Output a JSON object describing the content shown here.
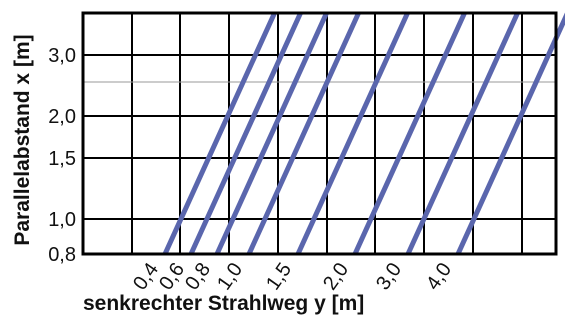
{
  "chart_data": {
    "type": "line",
    "title": "",
    "ylabel_main": "Parallelabstand",
    "ylabel_var": "x",
    "ylabel_unit": "[m]",
    "xlabel_main": "senkrechter Strahlweg",
    "xlabel_var": "y",
    "xlabel_unit": "[m]",
    "ylim": [
      0.8,
      3.7
    ],
    "y_tick_labels": [
      "0,8",
      "1,0",
      "1,5",
      "2,0",
      "3,0"
    ],
    "y_ticks": [
      0.8,
      1.0,
      1.5,
      2.0,
      3.0
    ],
    "y_gridlines_dark": [
      1.0,
      1.5,
      2.0,
      3.0
    ],
    "y_gridlines_light": [
      2.5
    ],
    "x_category_labels": [
      "0,4",
      "0,6",
      "0,8",
      "1,0",
      "1,5",
      "2,0",
      "3,0",
      "4,0"
    ],
    "grid": true,
    "series": [
      {
        "label_index": 0,
        "y_at_bottom": 0.4
      },
      {
        "label_index": 1,
        "y_at_bottom": 0.6
      },
      {
        "label_index": 2,
        "y_at_bottom": 0.8
      },
      {
        "label_index": 3,
        "y_at_bottom": 1.0
      },
      {
        "label_index": 4,
        "y_at_bottom": 1.5
      },
      {
        "label_index": 5,
        "y_at_bottom": 2.0
      },
      {
        "label_index": 6,
        "y_at_bottom": 3.0
      },
      {
        "label_index": 7,
        "y_at_bottom": 4.0
      }
    ],
    "series_color": "#5a66ad"
  }
}
